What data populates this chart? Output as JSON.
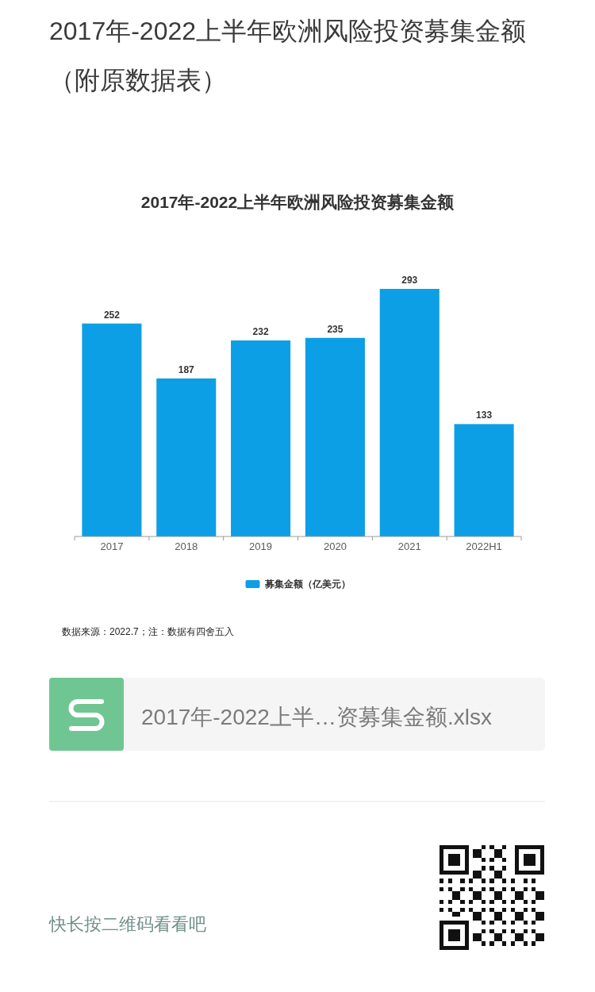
{
  "chart_data": {
    "type": "bar",
    "title": "2017年-2022上半年欧洲风险投资募集金额",
    "categories": [
      "2017",
      "2018",
      "2019",
      "2020",
      "2021",
      "2022H1"
    ],
    "series": [
      {
        "name": "募集金额（亿美元）",
        "color": "#0d9fe6",
        "values": [
          252,
          187,
          232,
          235,
          293,
          133
        ]
      }
    ],
    "data_labels": true,
    "legend": "bottom",
    "annotations": [
      "2017年-2022上半年欧洲风险投资募集金额（附原数据表）",
      "数据来源：2022.7；注：数据有四舍五入",
      "2017年-2022上半…资募集金额.xlsx",
      "快长按二维码看看吧"
    ]
  }
}
